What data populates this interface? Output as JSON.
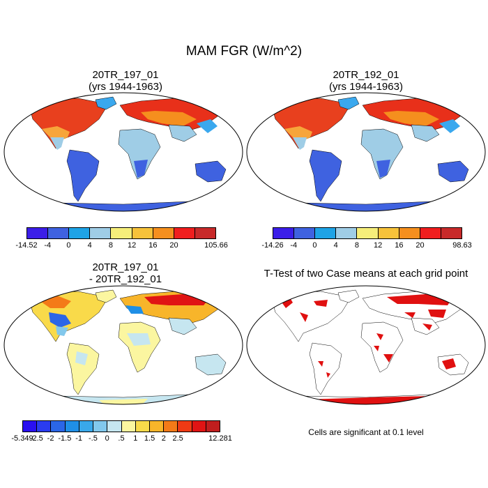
{
  "title": "MAM FGR (W/m^2)",
  "panels": {
    "top_left": {
      "title": "20TR_197_01",
      "subtitle": "(yrs 1944-1963)"
    },
    "top_right": {
      "title": "20TR_192_01",
      "subtitle": "(yrs 1944-1963)"
    },
    "bottom_left": {
      "title": "20TR_197_01",
      "subtitle": "- 20TR_192_01"
    },
    "bottom_right": {
      "title": "T-Test of two Case means at each grid point",
      "note": "Cells are significant at 0.1 level"
    }
  },
  "colorbars": {
    "top_left": {
      "labels": [
        "-14.52",
        "-4",
        "0",
        "4",
        "8",
        "12",
        "16",
        "20",
        "105.66"
      ],
      "colors": [
        "#3b1ee8",
        "#3f62e0",
        "#1ea3e6",
        "#9fcde6",
        "#f6ee7a",
        "#f7c23a",
        "#f58f1e",
        "#f01e1e",
        "#c82a2a"
      ]
    },
    "top_right": {
      "labels": [
        "-14.26",
        "-4",
        "0",
        "4",
        "8",
        "12",
        "16",
        "20",
        "98.63"
      ],
      "colors": [
        "#3b1ee8",
        "#3f62e0",
        "#1ea3e6",
        "#9fcde6",
        "#f6ee7a",
        "#f7c23a",
        "#f58f1e",
        "#f01e1e",
        "#c82a2a"
      ]
    },
    "bottom_left": {
      "labels": [
        "-5.349",
        "-2.5",
        "-2",
        "-1.5",
        "-1",
        "-.5",
        "0",
        ".5",
        "1",
        "1.5",
        "2",
        "2.5",
        "12.281"
      ],
      "colors": [
        "#2a0ff0",
        "#2a3cf0",
        "#2b66e6",
        "#1f8fe6",
        "#39a8ea",
        "#82c8ec",
        "#c6e6f0",
        "#fbf6a0",
        "#f9da4a",
        "#f8b52a",
        "#f47a18",
        "#ef3a14",
        "#e01414",
        "#c01e1e"
      ]
    }
  }
}
